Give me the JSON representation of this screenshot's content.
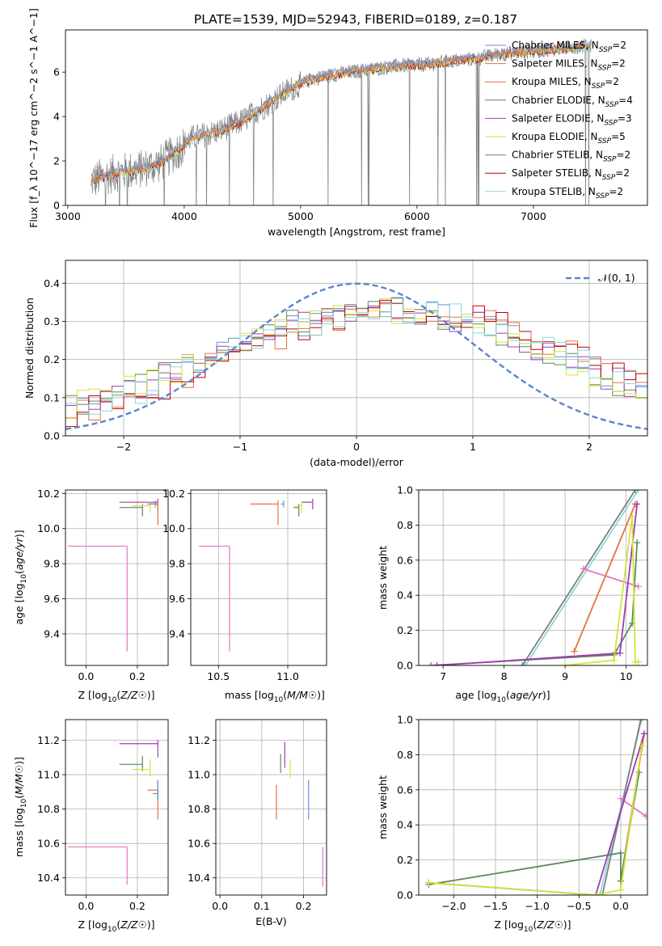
{
  "title": "PLATE=1539, MJD=52943, FIBERID=0189, z=0.187",
  "colors": {
    "chabrier_miles": "#6a8fd8",
    "salpeter_miles": "#e3733a",
    "kroupa_miles": "#e3733a",
    "chabrier_elodie": "#5a8a5a",
    "salpeter_elodie": "#a23bb0",
    "kroupa_elodie": "#d6e23a",
    "chabrier_stelib": "#7f7f7f",
    "salpeter_stelib": "#c00000",
    "kroupa_stelib": "#8fd6d6",
    "pink": "#e377c2",
    "data": "#808080",
    "gaussian": "#5b85cc",
    "grid": "#b0b0b0"
  },
  "chart_data": [
    {
      "id": "spectrum",
      "type": "line",
      "xlabel": "wavelength [Angstrom, rest frame]",
      "ylabel": "Flux [f_λ 10^−17 erg cm^−2 s^−1 A^−1]",
      "xlim": [
        2980,
        7980
      ],
      "ylim": [
        0,
        7.9
      ],
      "xticks": [
        3000,
        4000,
        5000,
        6000,
        7000
      ],
      "yticks": [
        0,
        2,
        4,
        6
      ],
      "grid": false,
      "legend_position": "top-right",
      "legend": [
        {
          "label": "Chabrier MILES, N",
          "sub": "SSP",
          "suffix": "=2",
          "color_key": "chabrier_miles"
        },
        {
          "label": "Salpeter MILES, N",
          "sub": "SSP",
          "suffix": "=2",
          "color_key": "salpeter_miles"
        },
        {
          "label": "Kroupa MILES, N",
          "sub": "SSP",
          "suffix": "=2",
          "color_key": "kroupa_miles"
        },
        {
          "label": "Chabrier ELODIE, N",
          "sub": "SSP",
          "suffix": "=4",
          "color_key": "chabrier_elodie"
        },
        {
          "label": "Salpeter ELODIE, N",
          "sub": "SSP",
          "suffix": "=3",
          "color_key": "salpeter_elodie"
        },
        {
          "label": "Kroupa ELODIE, N",
          "sub": "SSP",
          "suffix": "=5",
          "color_key": "kroupa_elodie"
        },
        {
          "label": "Chabrier STELIB, N",
          "sub": "SSP",
          "suffix": "=2",
          "color_key": "chabrier_stelib"
        },
        {
          "label": "Salpeter STELIB, N",
          "sub": "SSP",
          "suffix": "=2",
          "color_key": "salpeter_stelib"
        },
        {
          "label": "Kroupa STELIB, N",
          "sub": "SSP",
          "suffix": "=2",
          "color_key": "kroupa_stelib"
        }
      ],
      "continuum": {
        "x": [
          3200,
          3400,
          3600,
          3800,
          3950,
          4050,
          4300,
          4500,
          4700,
          4900,
          5100,
          5300,
          5500,
          5700,
          5900,
          6100,
          6300,
          6500,
          6700,
          6900,
          7100,
          7300,
          7500
        ],
        "y": [
          1.1,
          1.45,
          1.6,
          1.9,
          2.5,
          3.0,
          3.35,
          3.8,
          4.5,
          5.2,
          5.7,
          5.9,
          6.05,
          6.2,
          6.3,
          6.35,
          6.5,
          6.6,
          6.8,
          6.9,
          7.0,
          7.1,
          7.2
        ]
      }
    },
    {
      "id": "residual_hist",
      "type": "line",
      "xlabel": "(data-model)/error",
      "ylabel": "Normed distribution",
      "xlim": [
        -2.5,
        2.5
      ],
      "ylim": [
        0,
        0.46
      ],
      "xticks": [
        -2,
        -1,
        0,
        1,
        2
      ],
      "xticklabels": [
        "−2",
        "−1",
        "0",
        "1",
        "2"
      ],
      "yticks": [
        0,
        0.1,
        0.2,
        0.3,
        0.4
      ],
      "yticklabels": [
        "0.0",
        "0.1",
        "0.2",
        "0.3",
        "0.4"
      ],
      "grid": true,
      "legend": {
        "label": "𝒩(0, 1)",
        "position": "top-right"
      },
      "bin_width": 0.1,
      "series": [
        {
          "color_key": "chabrier_miles",
          "shift": -0.05
        },
        {
          "color_key": "salpeter_miles",
          "shift": 0.08
        },
        {
          "color_key": "chabrier_elodie",
          "shift": -0.2
        },
        {
          "color_key": "salpeter_elodie",
          "shift": -0.1
        },
        {
          "color_key": "kroupa_elodie",
          "shift": -0.15
        },
        {
          "color_key": "salpeter_stelib",
          "shift": 0.12
        },
        {
          "color_key": "kroupa_stelib",
          "shift": 0.02
        }
      ]
    },
    {
      "id": "age_vs_Z",
      "type": "scatter",
      "xlabel": "Z [log10(Z/Z☉)]",
      "ylabel": "age  [log10(age/yr)]",
      "xlim": [
        -0.08,
        0.32
      ],
      "ylim": [
        9.22,
        10.22
      ],
      "xticks": [
        0.0,
        0.2
      ],
      "xticklabels": [
        "0.0",
        "0.2"
      ],
      "yticks": [
        9.4,
        9.6,
        9.8,
        10.0,
        10.2
      ],
      "yticklabels": [
        "9.4",
        "9.6",
        "9.8",
        "10.0",
        "10.2"
      ],
      "grid": true,
      "points": [
        {
          "x": 0.16,
          "y": 9.9,
          "xerr": [
            0.23,
            0
          ],
          "yerr": [
            0.6,
            0
          ],
          "color_key": "pink"
        },
        {
          "x": 0.28,
          "y": 10.15,
          "xerr": [
            0.15,
            0
          ],
          "yerr": [
            0.04,
            0.02
          ],
          "color_key": "salpeter_elodie"
        },
        {
          "x": 0.28,
          "y": 10.14,
          "xerr": [
            0.04,
            0
          ],
          "yerr": [
            0.12,
            0.02
          ],
          "color_key": "salpeter_miles"
        },
        {
          "x": 0.22,
          "y": 10.12,
          "xerr": [
            0.09,
            0
          ],
          "yerr": [
            0.05,
            0.02
          ],
          "color_key": "chabrier_elodie"
        },
        {
          "x": 0.25,
          "y": 10.13,
          "xerr": [
            0.07,
            0
          ],
          "yerr": [
            0.04,
            0.02
          ],
          "color_key": "kroupa_elodie"
        },
        {
          "x": 0.27,
          "y": 10.14,
          "xerr": [
            0.03,
            0
          ],
          "yerr": [
            0.02,
            0.02
          ],
          "color_key": "chabrier_miles"
        }
      ]
    },
    {
      "id": "age_vs_mass",
      "type": "scatter",
      "xlabel": "mass [log10(M/M☉)]",
      "ylabel": "",
      "xlim": [
        10.3,
        11.28
      ],
      "ylim": [
        9.22,
        10.22
      ],
      "xticks": [
        10.5,
        11.0
      ],
      "xticklabels": [
        "10.5",
        "11.0"
      ],
      "yticks": [
        9.4,
        9.6,
        9.8,
        10.0,
        10.2
      ],
      "yticklabels": [
        "9.4",
        "9.6",
        "9.8",
        "10.0",
        "10.2"
      ],
      "grid": true,
      "points": [
        {
          "x": 10.58,
          "y": 9.9,
          "xerr": [
            0.22,
            0
          ],
          "yerr": [
            0.6,
            0
          ],
          "color_key": "pink"
        },
        {
          "x": 10.93,
          "y": 10.14,
          "xerr": [
            0.2,
            0
          ],
          "yerr": [
            0.12,
            0.02
          ],
          "color_key": "salpeter_miles"
        },
        {
          "x": 11.18,
          "y": 10.15,
          "xerr": [
            0.08,
            0
          ],
          "yerr": [
            0.04,
            0.02
          ],
          "color_key": "salpeter_elodie"
        },
        {
          "x": 11.08,
          "y": 10.12,
          "xerr": [
            0.04,
            0
          ],
          "yerr": [
            0.05,
            0.02
          ],
          "color_key": "chabrier_elodie"
        },
        {
          "x": 11.1,
          "y": 10.13,
          "xerr": [
            0.05,
            0
          ],
          "yerr": [
            0.04,
            0.02
          ],
          "color_key": "kroupa_elodie"
        },
        {
          "x": 10.97,
          "y": 10.14,
          "xerr": [
            0.02,
            0
          ],
          "yerr": [
            0.02,
            0.02
          ],
          "color_key": "chabrier_miles"
        }
      ]
    },
    {
      "id": "weight_vs_age",
      "type": "line",
      "xlabel": "age  [log10(age/yr)]",
      "ylabel": "mass weight",
      "xlim": [
        6.6,
        10.35
      ],
      "ylim": [
        0,
        1
      ],
      "xticks": [
        7,
        8,
        9,
        10
      ],
      "yticks": [
        0,
        0.2,
        0.4,
        0.6,
        0.8,
        1.0
      ],
      "yticklabels": [
        "0.0",
        "0.2",
        "0.4",
        "0.6",
        "0.8",
        "1.0"
      ],
      "grid": true,
      "series": [
        {
          "color_key": "kroupa_stelib",
          "x": [
            8.35,
            10.2
          ],
          "y": [
            0.0,
            1.0
          ]
        },
        {
          "color_key": "chabrier_stelib",
          "x": [
            8.3,
            10.15
          ],
          "y": [
            0.0,
            1.0
          ]
        },
        {
          "color_key": "salpeter_miles",
          "x": [
            9.15,
            10.15
          ],
          "y": [
            0.08,
            0.92
          ]
        },
        {
          "color_key": "pink",
          "x": [
            9.3,
            10.2
          ],
          "y": [
            0.55,
            0.45
          ]
        },
        {
          "color_key": "chabrier_elodie",
          "x": [
            6.8,
            9.8,
            10.1,
            10.18
          ],
          "y": [
            0.0,
            0.06,
            0.24,
            0.7
          ]
        },
        {
          "color_key": "salpeter_elodie",
          "x": [
            6.9,
            9.9,
            10.18
          ],
          "y": [
            0.0,
            0.07,
            0.92
          ]
        },
        {
          "color_key": "kroupa_elodie",
          "x": [
            9.0,
            9.8,
            10.1,
            10.15,
            10.2
          ],
          "y": [
            0.0,
            0.03,
            0.85,
            0.02,
            0.02
          ]
        }
      ]
    },
    {
      "id": "mass_vs_Z",
      "type": "scatter",
      "xlabel": "Z [log10(Z/Z☉)]",
      "ylabel": "mass [log10(M/M☉)]",
      "xlim": [
        -0.08,
        0.32
      ],
      "ylim": [
        10.3,
        11.32
      ],
      "xticks": [
        0.0,
        0.2
      ],
      "xticklabels": [
        "0.0",
        "0.2"
      ],
      "yticks": [
        10.4,
        10.6,
        10.8,
        11.0,
        11.2
      ],
      "yticklabels": [
        "10.4",
        "10.6",
        "10.8",
        "11.0",
        "11.2"
      ],
      "grid": true,
      "points": [
        {
          "x": 0.16,
          "y": 10.58,
          "xerr": [
            0.23,
            0
          ],
          "yerr": [
            0.22,
            0
          ],
          "color_key": "pink"
        },
        {
          "x": 0.28,
          "y": 11.18,
          "xerr": [
            0.15,
            0
          ],
          "yerr": [
            0.08,
            0.02
          ],
          "color_key": "salpeter_elodie"
        },
        {
          "x": 0.28,
          "y": 10.91,
          "xerr": [
            0.04,
            0
          ],
          "yerr": [
            0.17,
            0.05
          ],
          "color_key": "salpeter_miles"
        },
        {
          "x": 0.22,
          "y": 11.06,
          "xerr": [
            0.09,
            0
          ],
          "yerr": [
            0.04,
            0.05
          ],
          "color_key": "chabrier_elodie"
        },
        {
          "x": 0.25,
          "y": 11.03,
          "xerr": [
            0.07,
            0
          ],
          "yerr": [
            0.04,
            0.06
          ],
          "color_key": "kroupa_elodie"
        },
        {
          "x": 0.28,
          "y": 10.89,
          "xerr": [
            0.02,
            0
          ],
          "yerr": [
            0.04,
            0.08
          ],
          "color_key": "chabrier_miles"
        }
      ]
    },
    {
      "id": "mass_vs_ebv",
      "type": "scatter",
      "xlabel": "E(B-V)",
      "ylabel": "",
      "xlim": [
        -0.01,
        0.255
      ],
      "ylim": [
        10.3,
        11.32
      ],
      "xticks": [
        0.0,
        0.1,
        0.2
      ],
      "xticklabels": [
        "0.0",
        "0.1",
        "0.2"
      ],
      "yticks": [
        10.4,
        10.6,
        10.8,
        11.0,
        11.2
      ],
      "yticklabels": [
        "10.4",
        "10.6",
        "10.8",
        "11.0",
        "11.2"
      ],
      "grid": true,
      "points": [
        {
          "x": 0.135,
          "y": 10.84,
          "yerr": [
            0.1,
            0.1
          ],
          "color_key": "salpeter_miles"
        },
        {
          "x": 0.145,
          "y": 11.06,
          "yerr": [
            0.05,
            0.06
          ],
          "color_key": "chabrier_elodie"
        },
        {
          "x": 0.155,
          "y": 11.1,
          "yerr": [
            0.06,
            0.09
          ],
          "color_key": "salpeter_elodie"
        },
        {
          "x": 0.168,
          "y": 11.02,
          "yerr": [
            0.04,
            0.07
          ],
          "color_key": "kroupa_elodie"
        },
        {
          "x": 0.212,
          "y": 10.85,
          "yerr": [
            0.11,
            0.12
          ],
          "color_key": "chabrier_miles"
        },
        {
          "x": 0.246,
          "y": 10.46,
          "yerr": [
            0.11,
            0.12
          ],
          "color_key": "pink"
        }
      ]
    },
    {
      "id": "weight_vs_Z",
      "type": "line",
      "xlabel": "Z [log10(Z/Z☉)]",
      "ylabel": "mass weight",
      "xlim": [
        -2.42,
        0.32
      ],
      "ylim": [
        0,
        1
      ],
      "xticks": [
        -2.0,
        -1.5,
        -1.0,
        -0.5,
        0.0
      ],
      "xticklabels": [
        "−2.0",
        "−1.5",
        "−1.0",
        "−0.5",
        "0.0"
      ],
      "yticks": [
        0,
        0.2,
        0.4,
        0.6,
        0.8,
        1.0
      ],
      "yticklabels": [
        "0.0",
        "0.2",
        "0.4",
        "0.6",
        "0.8",
        "1.0"
      ],
      "grid": true,
      "series": [
        {
          "color_key": "kroupa_stelib",
          "x": [
            -0.25,
            0.25
          ],
          "y": [
            0.0,
            1.0
          ]
        },
        {
          "color_key": "chabrier_stelib",
          "x": [
            -0.22,
            0.24
          ],
          "y": [
            0.0,
            1.0
          ]
        },
        {
          "color_key": "salpeter_miles",
          "x": [
            0.0,
            0.28
          ],
          "y": [
            0.08,
            0.92
          ]
        },
        {
          "color_key": "pink",
          "x": [
            0.0,
            0.3
          ],
          "y": [
            0.55,
            0.45
          ]
        },
        {
          "color_key": "chabrier_elodie",
          "x": [
            -2.3,
            0.0,
            0.0,
            0.22
          ],
          "y": [
            0.06,
            0.24,
            0.08,
            0.7
          ]
        },
        {
          "color_key": "salpeter_elodie",
          "x": [
            -2.3,
            -0.3,
            0.28
          ],
          "y": [
            0.07,
            0.0,
            0.92
          ]
        },
        {
          "color_key": "kroupa_elodie",
          "x": [
            -2.3,
            -0.3,
            0.0,
            0.25
          ],
          "y": [
            0.07,
            0.0,
            0.03,
            0.85
          ]
        }
      ]
    }
  ]
}
